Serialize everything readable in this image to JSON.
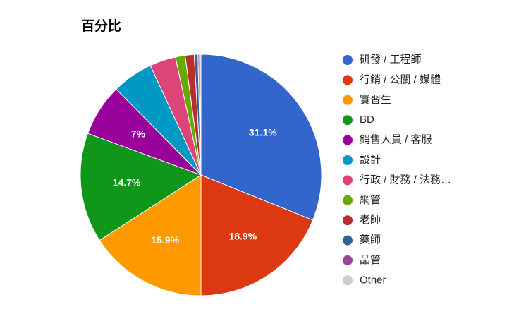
{
  "chart_data": {
    "type": "pie",
    "title": "百分比",
    "categories": [
      "研發 / 工程師",
      "行銷 / 公關 / 媒體",
      "實習生",
      "BD",
      "銷售人員 / 客服",
      "設計",
      "行政 / 財務 / 法務…",
      "網管",
      "老師",
      "藥師",
      "品管",
      "Other"
    ],
    "values": [
      31.1,
      18.9,
      15.9,
      14.7,
      7,
      5.5,
      3.5,
      1.3,
      1.2,
      0.5,
      0.2,
      0.2
    ],
    "value_labels": [
      "31.1%",
      "18.9%",
      "15.9%",
      "14.7%",
      "7%",
      null,
      null,
      null,
      null,
      null,
      null,
      null
    ],
    "colors": [
      "#3366cc",
      "#dc3912",
      "#ff9900",
      "#109618",
      "#990099",
      "#0099c6",
      "#dd4477",
      "#66aa00",
      "#b82e2e",
      "#316395",
      "#994499",
      "#cccccc"
    ],
    "legend": "right"
  }
}
